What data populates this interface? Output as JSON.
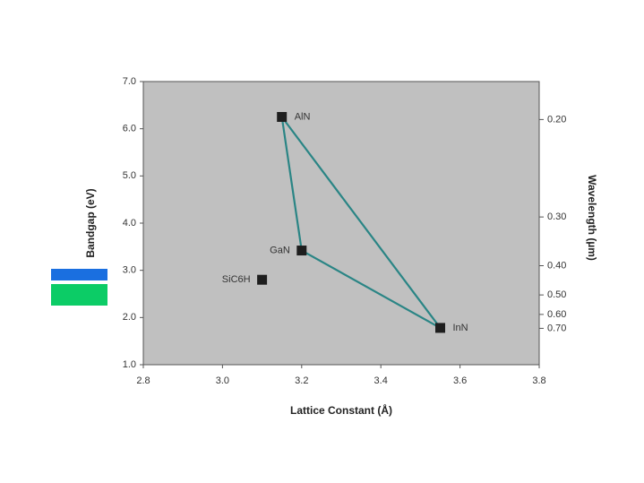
{
  "chart_data": {
    "type": "scatter",
    "x_label": "Lattice Constant (Å)",
    "y_label": "Bandgap (eV)",
    "y2_label": "Wavelength (µm)",
    "xlim": [
      2.8,
      3.8
    ],
    "xticks": [
      2.8,
      {
        "value": 3,
        "label": "3.0"
      },
      3.2,
      3.4,
      3.6,
      3.8
    ],
    "ylim": [
      1,
      7
    ],
    "yticks": [
      {
        "value": 1,
        "label": "1.0"
      },
      {
        "value": 2,
        "label": "2.0"
      },
      {
        "value": 3,
        "label": "3.0"
      },
      {
        "value": 4,
        "label": "4.0"
      },
      {
        "value": 5,
        "label": "5.0"
      },
      {
        "value": 6,
        "label": "6.0"
      },
      {
        "value": 7,
        "label": "7.0"
      }
    ],
    "y2lim": [
      0.177,
      1.24
    ],
    "y2ticks": [
      {
        "value": 0.2,
        "label": "0.20"
      },
      {
        "value": 0.3,
        "label": "0.30"
      },
      {
        "value": 0.4,
        "label": "0.40"
      },
      {
        "value": 0.5,
        "label": "0.50"
      },
      {
        "value": 0.6,
        "label": "0.60"
      },
      {
        "value": 0.7,
        "label": "0.70"
      }
    ],
    "y2_scale": "reciprocal",
    "background": "#c0c0c0",
    "marker_color": "#1e1e1e",
    "series": [
      {
        "labels": [
          "AlN",
          "GaN",
          "InN"
        ],
        "x": [
          3.15,
          3.2,
          3.55
        ],
        "values": [
          6.25,
          3.42,
          1.78
        ],
        "color": "#2a8585",
        "closed": true
      },
      {
        "labels": [
          "SiC6H"
        ],
        "x": [
          3.1
        ],
        "values": [
          2.8
        ],
        "closed": false
      }
    ]
  }
}
